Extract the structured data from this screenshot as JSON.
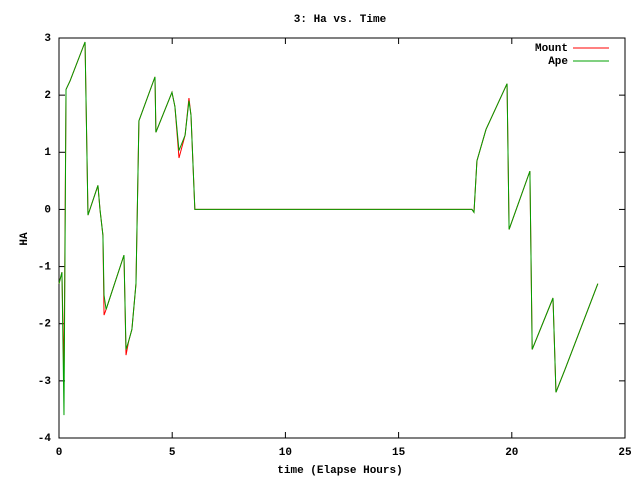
{
  "chart_data": {
    "type": "line",
    "title": "3: Ha vs. Time",
    "x_label": "time (Elapse Hours)",
    "y_label": "HA",
    "x": [
      0,
      0.13,
      0.22,
      0.31,
      0.49,
      1.15,
      1.28,
      1.72,
      1.81,
      1.94,
      1.99,
      2.08,
      2.87,
      2.96,
      3.08,
      3.22,
      3.4,
      3.53,
      4.24,
      4.28,
      4.99,
      5.12,
      5.3,
      5.57,
      5.74,
      5.83,
      6.0,
      18.24,
      18.33,
      18.46,
      18.86,
      19.79,
      19.88,
      20.8,
      20.9,
      21.82,
      21.95,
      22.35,
      23.8
    ],
    "series": [
      {
        "name": "Mount",
        "color": "#ff0000",
        "values": [
          -1.3,
          -1.1,
          -2.95,
          2.1,
          2.25,
          2.93,
          -0.1,
          0.42,
          0.0,
          -0.45,
          -1.85,
          -1.75,
          -0.8,
          -2.55,
          -2.3,
          -2.1,
          -1.3,
          1.55,
          2.32,
          1.35,
          2.05,
          1.8,
          0.9,
          1.3,
          1.95,
          1.65,
          0.0,
          0.0,
          -0.05,
          0.85,
          1.4,
          2.2,
          -0.35,
          0.67,
          -2.45,
          -1.55,
          -3.2,
          -2.8,
          -1.3
        ]
      },
      {
        "name": "Ape",
        "color": "#00a000",
        "values": [
          -1.3,
          -1.1,
          -3.6,
          2.1,
          2.25,
          2.93,
          -0.1,
          0.42,
          0.0,
          -0.45,
          -1.5,
          -1.75,
          -0.8,
          -2.45,
          -2.3,
          -2.1,
          -1.3,
          1.55,
          2.32,
          1.35,
          2.05,
          1.8,
          1.03,
          1.3,
          1.9,
          1.65,
          0.0,
          0.0,
          -0.05,
          0.85,
          1.4,
          2.2,
          -0.35,
          0.67,
          -2.45,
          -1.55,
          -3.2,
          -2.8,
          -1.3
        ]
      }
    ],
    "xlim": [
      0,
      25
    ],
    "ylim": [
      -4,
      3
    ],
    "xticks": [
      0,
      5,
      10,
      15,
      20,
      25
    ],
    "yticks": [
      -4,
      -3,
      -2,
      -1,
      0,
      1,
      2,
      3
    ],
    "grid": false,
    "legend_position": "top-right"
  }
}
